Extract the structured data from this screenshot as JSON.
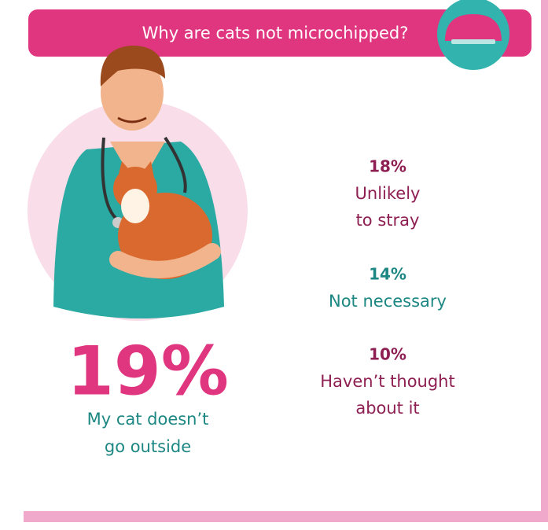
{
  "header": {
    "title": "Why are cats not microchipped?"
  },
  "main_stat": {
    "value": "19%",
    "label_lines": [
      "My cat doesn’t",
      "go outside"
    ]
  },
  "stats": [
    {
      "value": "18%",
      "label_lines": [
        "Unlikely",
        "to stray"
      ],
      "color": "#8e1f52"
    },
    {
      "value": "14%",
      "label_lines": [
        "Not necessary"
      ],
      "color": "#1c8783"
    },
    {
      "value": "10%",
      "label_lines": [
        "Haven’t thought",
        "about it"
      ],
      "color": "#8e1f52"
    }
  ]
}
